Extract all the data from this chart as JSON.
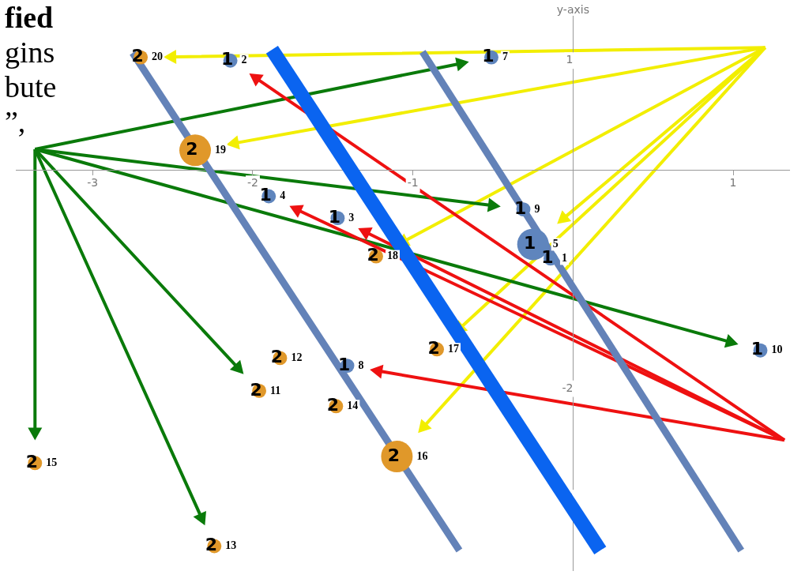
{
  "chart_data": {
    "type": "bubble",
    "ylabel": "y-axis",
    "annotations": [
      "fied",
      "gins",
      "bute",
      "”,",
      {
        "text": "2",
        "x": -2.14,
        "y": 1.0
      },
      {
        "text": "3",
        "x": -1.47,
        "y": -0.44
      },
      {
        "text": "4",
        "x": -1.9,
        "y": -0.24
      },
      {
        "text": "5",
        "x": -0.25,
        "y": -0.68
      },
      {
        "text": "1",
        "x": -0.14,
        "y": -0.81
      },
      {
        "text": "7",
        "x": -0.51,
        "y": 1.03
      },
      {
        "text": "8",
        "x": -1.41,
        "y": -1.79
      },
      {
        "text": "9",
        "x": -0.31,
        "y": -0.36
      },
      {
        "text": "10",
        "x": 1.17,
        "y": -1.65
      },
      {
        "text": "20",
        "x": -2.7,
        "y": 1.03
      },
      {
        "text": "19",
        "x": -2.36,
        "y": 0.18
      },
      {
        "text": "18",
        "x": -1.23,
        "y": -0.79
      },
      {
        "text": "17",
        "x": -0.85,
        "y": -1.64
      },
      {
        "text": "12",
        "x": -1.83,
        "y": -1.72
      },
      {
        "text": "11",
        "x": -1.96,
        "y": -2.02
      },
      {
        "text": "14",
        "x": -1.48,
        "y": -2.16
      },
      {
        "text": "16",
        "x": -1.1,
        "y": -2.62
      },
      {
        "text": "15",
        "x": -3.36,
        "y": -2.68
      },
      {
        "text": "13",
        "x": -2.24,
        "y": -3.44
      }
    ],
    "xlim": [
      -3.48,
      1.35
    ],
    "ylim": [
      -3.66,
      1.41
    ],
    "xticks": [
      -3,
      -2,
      -1,
      1
    ],
    "yticks": [
      1,
      -2,
      -3
    ],
    "grid": false,
    "legend": false,
    "series": [
      {
        "name": "1",
        "color": "#5f85bd",
        "x": [
          -2.14,
          -1.47,
          -1.9,
          -0.25,
          -0.14,
          -0.51,
          -1.41,
          -0.31,
          1.17
        ],
        "values": [
          1.0,
          -0.44,
          -0.24,
          -0.68,
          -0.81,
          1.03,
          -1.79,
          -0.36,
          -1.65
        ],
        "sizes": [
          0.2,
          0.2,
          0.2,
          1,
          0.2,
          0.2,
          0.2,
          0.2,
          0.2
        ]
      },
      {
        "name": "2",
        "color": "#e0982a",
        "x": [
          -2.7,
          -2.36,
          -1.23,
          -0.85,
          -1.83,
          -1.96,
          -1.48,
          -1.1,
          -3.36,
          -2.24
        ],
        "values": [
          1.03,
          0.18,
          -0.79,
          -1.64,
          -1.72,
          -2.02,
          -2.16,
          -2.62,
          -2.68,
          -3.44
        ],
        "sizes": [
          0.2,
          1,
          0.2,
          0.2,
          0.2,
          0.2,
          0.2,
          1,
          0.2,
          0.2
        ]
      },
      {
        "type": "line",
        "color": "#6382b8",
        "x": [
          -2.75,
          -0.71
        ],
        "values": [
          1.07,
          -3.48
        ]
      },
      {
        "type": "line",
        "color": "#0a64f0",
        "x": [
          -1.88,
          0.17
        ],
        "values": [
          1.1,
          -3.48
        ]
      },
      {
        "type": "line",
        "color": "#6382b8",
        "x": [
          -0.94,
          1.05
        ],
        "values": [
          1.08,
          -3.48
        ]
      }
    ]
  }
}
